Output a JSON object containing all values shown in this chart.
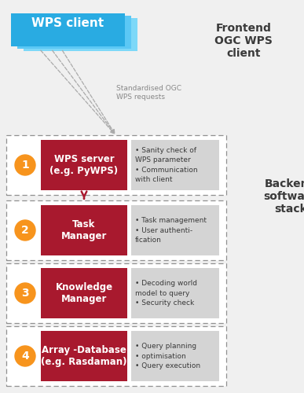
{
  "bg_color": "#f0f0f0",
  "frontend_label": "Frontend\nOGC WPS\nclient",
  "backend_label": "Backend\nsoftware\nstack",
  "wps_client_text": "WPS client",
  "wps_client_color": "#29ABE2",
  "wps_client_shadow_light": "#7DD8F8",
  "wps_client_shadow_mid": "#5BC8F5",
  "arrow_label": "Standardised OGC\nWPS requests",
  "components": [
    {
      "number": "1",
      "title": "WPS server\n(e.g. PyWPS)",
      "bullet1": "Sanity check of\nWPS parameter",
      "bullet2": "Communication\nwith client"
    },
    {
      "number": "2",
      "title": "Task\nManager",
      "bullet1": "Task management",
      "bullet2": "User authenti-\nfication"
    },
    {
      "number": "3",
      "title": "Knowledge\nManager",
      "bullet1": "Decoding world\nmodel to query",
      "bullet2": "Security check"
    },
    {
      "number": "4",
      "title": "Array -Database\n(e.g. Rasdaman)",
      "bullet1": "Query planning",
      "bullet2": "optimisation",
      "bullet3": "Query execution"
    }
  ],
  "red_color": "#A8192E",
  "orange_color": "#F7941D",
  "gray_box_color": "#D4D4D4",
  "dashed_border_color": "#909090",
  "arrow_color": "#A8192E",
  "text_color_white": "#FFFFFF",
  "text_color_dark": "#3a3a3a",
  "text_color_gray": "#999999",
  "text_color_label": "#888888"
}
